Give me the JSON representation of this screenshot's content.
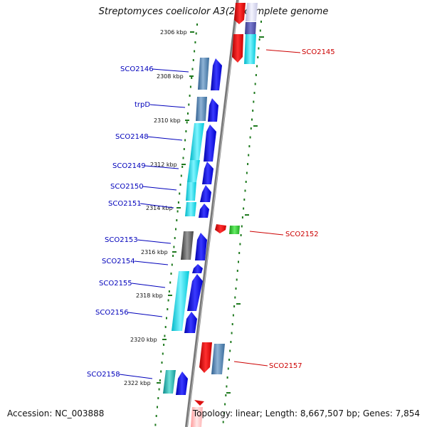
{
  "title": "Streptomyces coelicolor A3(2), complete genome",
  "footer": {
    "accession": "Accession: NC_003888",
    "summary": "Topology: linear; Length: 8,667,507 bp; Genes: 7,854"
  },
  "colors": {
    "forward_label": "#0000bb",
    "reverse_label": "#cc0000",
    "tick": "#1f7a1f",
    "axis": "#888888"
  },
  "kbp_labels": [
    "2306 kbp",
    "2308 kbp",
    "2310 kbp",
    "2312 kbp",
    "2314 kbp",
    "2316 kbp",
    "2318 kbp",
    "2320 kbp",
    "2322 kbp"
  ],
  "forward_genes": [
    {
      "name": "SCO2146",
      "strand": "+"
    },
    {
      "name": "trpD",
      "strand": "+"
    },
    {
      "name": "SCO2148",
      "strand": "+"
    },
    {
      "name": "SCO2149",
      "strand": "+"
    },
    {
      "name": "SCO2150",
      "strand": "+"
    },
    {
      "name": "SCO2151",
      "strand": "+"
    },
    {
      "name": "SCO2153",
      "strand": "+"
    },
    {
      "name": "SCO2154",
      "strand": "+"
    },
    {
      "name": "SCO2155",
      "strand": "+"
    },
    {
      "name": "SCO2156",
      "strand": "+"
    },
    {
      "name": "SCO2158",
      "strand": "+"
    }
  ],
  "reverse_genes": [
    {
      "name": "SCO2145",
      "strand": "-"
    },
    {
      "name": "SCO2152",
      "strand": "-"
    },
    {
      "name": "SCO2157",
      "strand": "-"
    }
  ]
}
